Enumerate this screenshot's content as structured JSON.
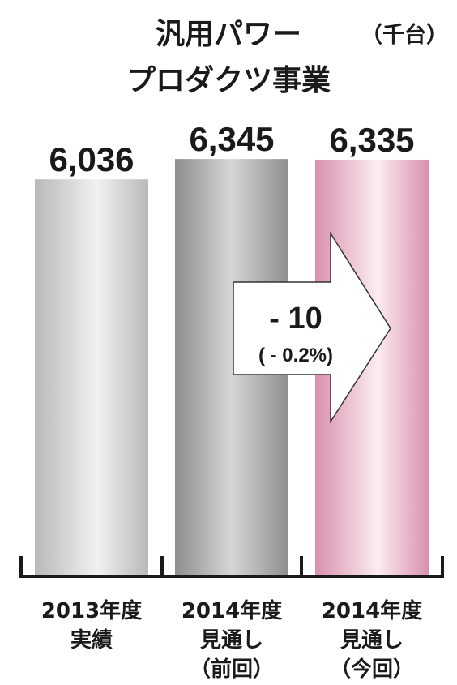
{
  "chart_data": {
    "type": "bar",
    "title_lines": [
      "汎用パワー",
      "プロダクツ事業"
    ],
    "unit": "（千台）",
    "categories": [
      [
        "2013年度",
        "実績"
      ],
      [
        "2014年度",
        "見通し",
        "（前回）"
      ],
      [
        "2014年度",
        "見通し",
        "（今回）"
      ]
    ],
    "values": [
      6036,
      6345,
      6335
    ],
    "value_labels": [
      "6,036",
      "6,345",
      "6,335"
    ],
    "ylim": [
      0,
      7000
    ],
    "grid": false,
    "legend": "none",
    "bar_styles": [
      "light-gray-gradient",
      "dark-gray-gradient",
      "pink-gradient"
    ],
    "annotation": {
      "type": "arrow",
      "main": "- 10",
      "sub": "( - 0.2%)"
    }
  },
  "colors": {
    "text": "#1a1a1a",
    "axis": "#1a1a1a",
    "bar1_edge": "#b9b9b9",
    "bar1_mid": "#f1f1f1",
    "bar2_edge": "#8e8e8e",
    "bar2_mid": "#d6d6d6",
    "bar3_edge": "#d990ad",
    "bar3_mid": "#fcecf2",
    "arrow_fill": "#ffffff",
    "arrow_stroke": "#333333"
  }
}
